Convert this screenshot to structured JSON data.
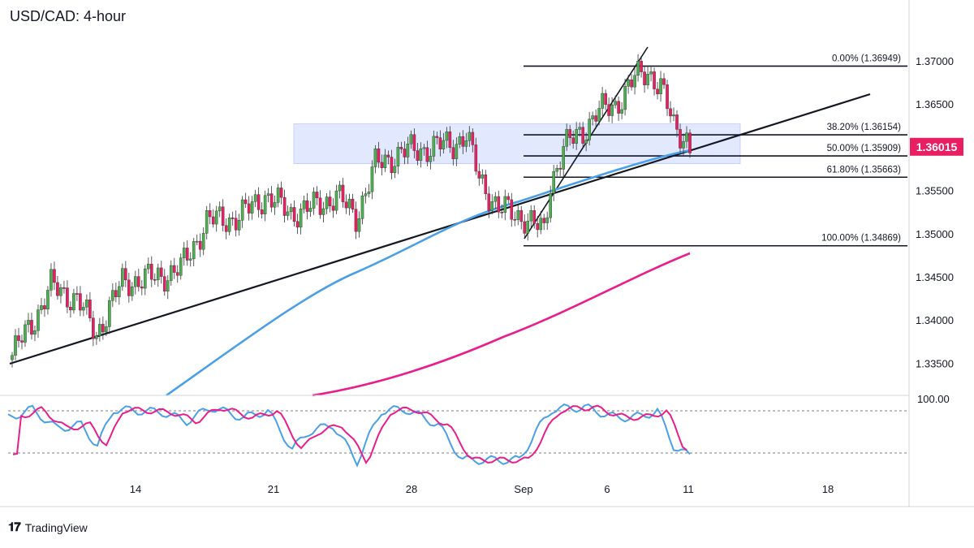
{
  "title": "USD/CAD: 4-hour",
  "brand": "TradingView",
  "brand_icon": "tradingview-logo-icon",
  "colors": {
    "bull": "#4caf50",
    "bear": "#e91e63",
    "sma_fast": "#4a9fe8",
    "sma_slow": "#e91e8c",
    "zone": "#dde5ff",
    "price_badge": "#e91e63",
    "stoch_k": "#4a9fe8",
    "stoch_d": "#e91e8c"
  },
  "chart_data": {
    "type": "line",
    "price_axis": {
      "ticks": [
        "1.37000",
        "1.36500",
        "1.36000",
        "1.35500",
        "1.35000",
        "1.34500",
        "1.34000",
        "1.33500"
      ],
      "range": [
        1.3305,
        1.3724
      ]
    },
    "current_price": "1.36015",
    "time_axis": {
      "ticks": [
        "14",
        "21",
        "28",
        "Sep",
        "6",
        "11",
        "18"
      ]
    },
    "fibonacci": [
      {
        "label": "0.00% (1.36949)",
        "price": 1.36949
      },
      {
        "label": "38.20% (1.36154)",
        "price": 1.36154
      },
      {
        "label": "50.00% (1.35909)",
        "price": 1.35909
      },
      {
        "label": "61.80% (1.35663)",
        "price": 1.35663
      },
      {
        "label": "100.00% (1.34869)",
        "price": 1.34869
      }
    ],
    "resistance_zone": {
      "from": 1.3582,
      "to": 1.3628
    },
    "stochastic": {
      "upper_label": "100.00",
      "range": [
        0,
        100
      ],
      "levels": [
        80,
        20
      ]
    },
    "grid": false
  }
}
